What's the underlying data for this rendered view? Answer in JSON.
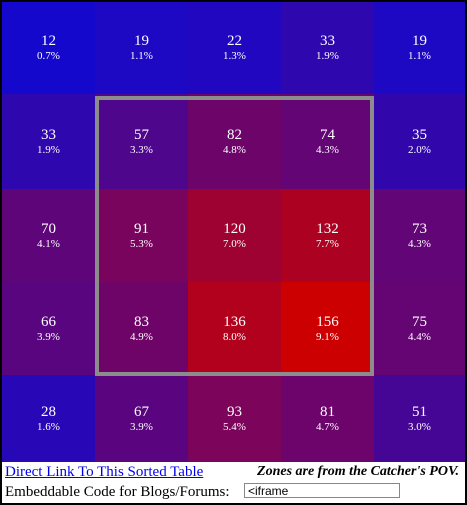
{
  "zones": {
    "rows": [
      [
        {
          "count": "12",
          "pct": "0.7%"
        },
        {
          "count": "19",
          "pct": "1.1%"
        },
        {
          "count": "22",
          "pct": "1.3%"
        },
        {
          "count": "33",
          "pct": "1.9%"
        },
        {
          "count": "19",
          "pct": "1.1%"
        }
      ],
      [
        {
          "count": "33",
          "pct": "1.9%"
        },
        {
          "count": "57",
          "pct": "3.3%"
        },
        {
          "count": "82",
          "pct": "4.8%"
        },
        {
          "count": "74",
          "pct": "4.3%"
        },
        {
          "count": "35",
          "pct": "2.0%"
        }
      ],
      [
        {
          "count": "70",
          "pct": "4.1%"
        },
        {
          "count": "91",
          "pct": "5.3%"
        },
        {
          "count": "120",
          "pct": "7.0%"
        },
        {
          "count": "132",
          "pct": "7.7%"
        },
        {
          "count": "73",
          "pct": "4.3%"
        }
      ],
      [
        {
          "count": "66",
          "pct": "3.9%"
        },
        {
          "count": "83",
          "pct": "4.9%"
        },
        {
          "count": "136",
          "pct": "8.0%"
        },
        {
          "count": "156",
          "pct": "9.1%"
        },
        {
          "count": "75",
          "pct": "4.4%"
        }
      ],
      [
        {
          "count": "28",
          "pct": "1.6%"
        },
        {
          "count": "67",
          "pct": "3.9%"
        },
        {
          "count": "93",
          "pct": "5.4%"
        },
        {
          "count": "81",
          "pct": "4.7%"
        },
        {
          "count": "51",
          "pct": "3.0%"
        }
      ]
    ]
  },
  "footer": {
    "link": "Direct Link To This Sorted Table",
    "note": "Zones are from the Catcher's POV.",
    "embed_label": "Embeddable Code for Blogs/Forums:",
    "embed_code": "<iframe"
  }
}
